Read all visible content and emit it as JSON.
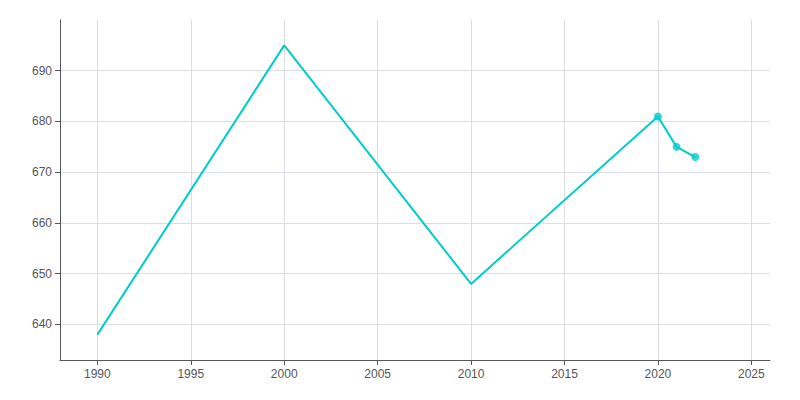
{
  "chart_data": {
    "type": "line",
    "x": [
      1990,
      2000,
      2010,
      2020,
      2021,
      2022
    ],
    "series": [
      {
        "type": "line",
        "color": "#00CCCC",
        "marker": "none",
        "line_style": "solid",
        "values": [
          638,
          695,
          648,
          681,
          675,
          673
        ]
      },
      {
        "type": "scatter",
        "color": "#00CCCC",
        "marker": "circle",
        "values": [
          null,
          null,
          null,
          681,
          675,
          673
        ]
      }
    ],
    "xlim": [
      1988,
      2026
    ],
    "xticks": [
      1990,
      1995,
      2000,
      2005,
      2010,
      2015,
      2020,
      2025
    ],
    "ylim": [
      633,
      700
    ],
    "yticks": [
      640,
      650,
      660,
      670,
      680,
      690
    ],
    "grid": true
  }
}
